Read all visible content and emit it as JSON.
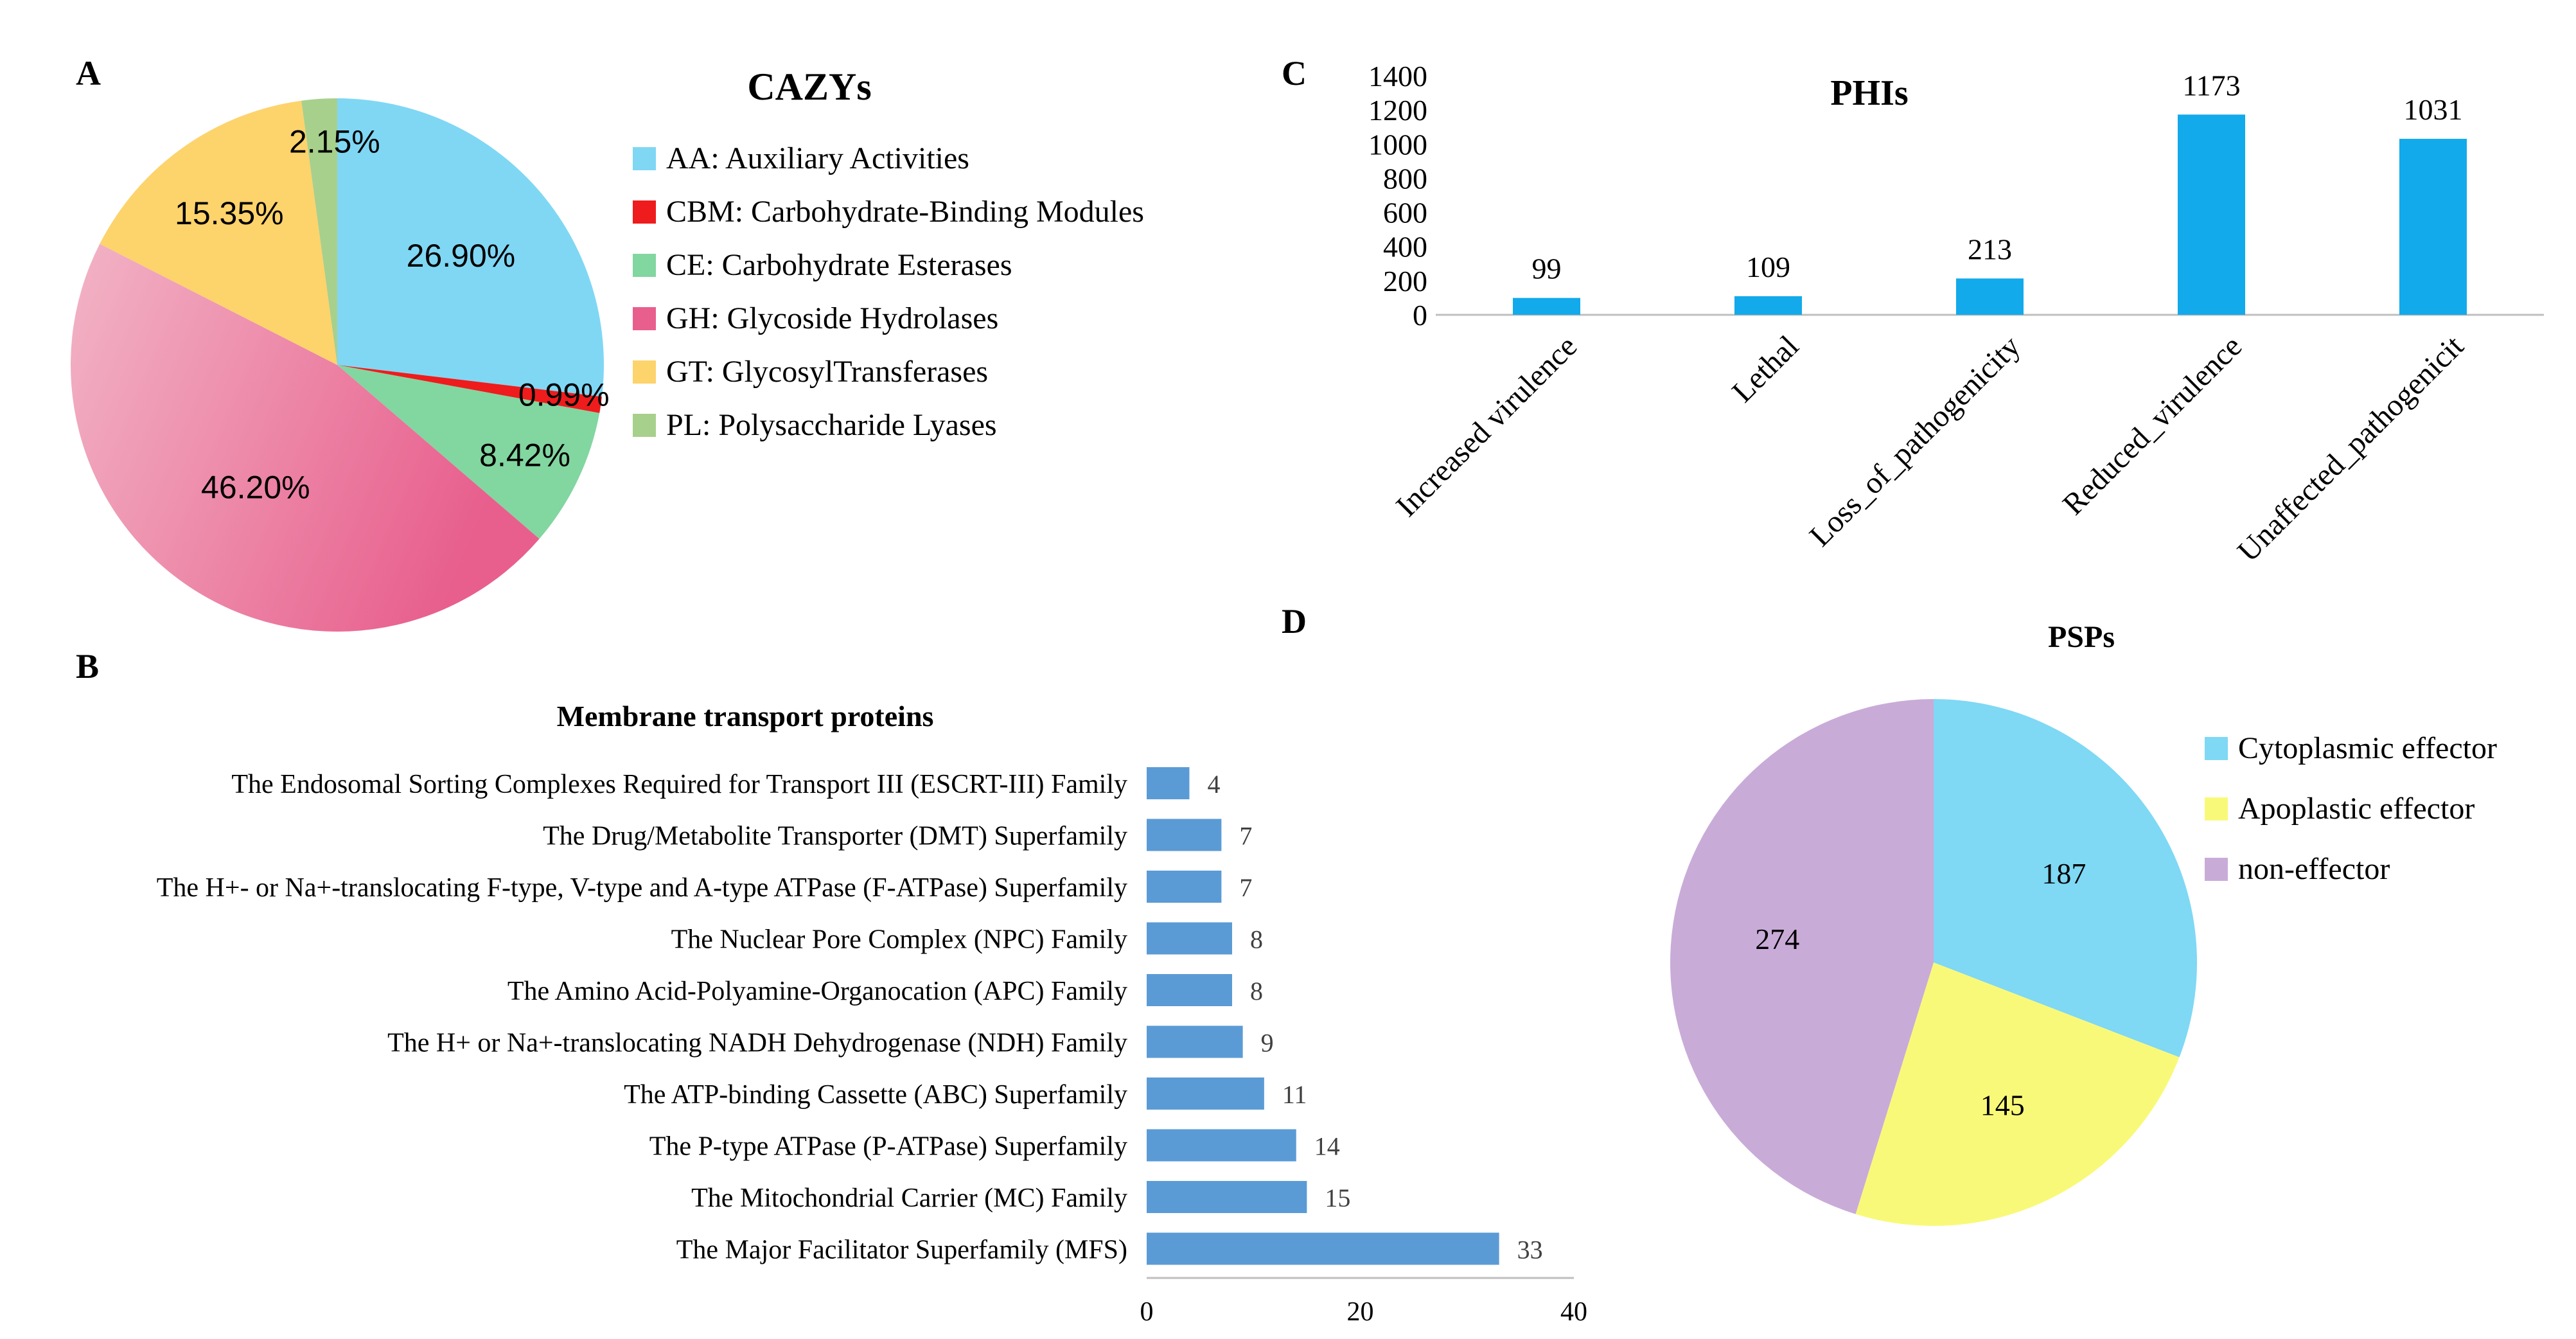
{
  "colors": {
    "aa": "#7fd7f4",
    "cbm": "#ee1c1c",
    "ce": "#82d6a0",
    "gh_light": "#f2b4c6",
    "gh_dark": "#e85f8d",
    "gt": "#fdd36c",
    "pl": "#a7d08c",
    "bar_blue_c": "#12aaea",
    "bar_blue_b": "#5b9bd5",
    "cyto": "#7fd8f4",
    "apo": "#f9f979",
    "non": "#c9abd8",
    "axis": "#bfbfbf",
    "text": "#000000"
  },
  "panels": {
    "a": {
      "letter": "A"
    },
    "b": {
      "letter": "B"
    },
    "c": {
      "letter": "C"
    },
    "d": {
      "letter": "D"
    }
  },
  "chart_data": [
    {
      "id": "cazys",
      "type": "pie",
      "title": "CAZYs",
      "slices": [
        {
          "key": "aa",
          "legend": "AA: Auxiliary Activities",
          "value": 26.9,
          "label": "26.90%"
        },
        {
          "key": "cbm",
          "legend": "CBM: Carbohydrate-Binding Modules",
          "value": 0.99,
          "label": "0.99%"
        },
        {
          "key": "ce",
          "legend": "CE: Carbohydrate Esterases",
          "value": 8.42,
          "label": "8.42%"
        },
        {
          "key": "gh",
          "legend": "GH: Glycoside Hydrolases",
          "value": 46.2,
          "label": "46.20%"
        },
        {
          "key": "gt",
          "legend": "GT: GlycosylTransferases",
          "value": 15.35,
          "label": "15.35%"
        },
        {
          "key": "pl",
          "legend": "PL: Polysaccharide Lyases",
          "value": 2.15,
          "label": "2.15%"
        }
      ]
    },
    {
      "id": "membrane",
      "type": "bar",
      "orientation": "horizontal",
      "title": "Membrane transport proteins",
      "categories": [
        "The Endosomal Sorting Complexes Required for Transport III (ESCRT-III) Family",
        "The Drug/Metabolite Transporter (DMT) Superfamily",
        "The H+- or Na+-translocating F-type, V-type and A-type ATPase (F-ATPase) Superfamily",
        "The Nuclear Pore Complex (NPC) Family",
        "The Amino Acid-Polyamine-Organocation (APC) Family",
        "The H+ or Na+-translocating NADH Dehydrogenase (NDH) Family",
        "The ATP-binding Cassette (ABC) Superfamily",
        "The P-type ATPase (P-ATPase) Superfamily",
        "The Mitochondrial Carrier (MC) Family",
        "The Major Facilitator Superfamily (MFS)"
      ],
      "values": [
        4,
        7,
        7,
        8,
        8,
        9,
        11,
        14,
        15,
        33
      ],
      "xlim": [
        0,
        40
      ],
      "xticks": [
        0,
        20,
        40
      ]
    },
    {
      "id": "phis",
      "type": "bar",
      "orientation": "vertical",
      "title": "PHIs",
      "categories": [
        "Increased virulence",
        "Lethal",
        "Loss_of_pathogenicity",
        "Reduced_virulence",
        "Unaffected_pathogenicit"
      ],
      "values": [
        99,
        109,
        213,
        1173,
        1031
      ],
      "ylim": [
        0,
        1400
      ],
      "yticks": [
        0,
        200,
        400,
        600,
        800,
        1000,
        1200,
        1400
      ]
    },
    {
      "id": "psps",
      "type": "pie",
      "title": "PSPs",
      "slices": [
        {
          "key": "cyto",
          "legend": "Cytoplasmic effector",
          "value": 187,
          "label": "187"
        },
        {
          "key": "apo",
          "legend": "Apoplastic effector",
          "value": 145,
          "label": "145"
        },
        {
          "key": "non",
          "legend": "non-effector",
          "value": 274,
          "label": "274"
        }
      ]
    }
  ]
}
